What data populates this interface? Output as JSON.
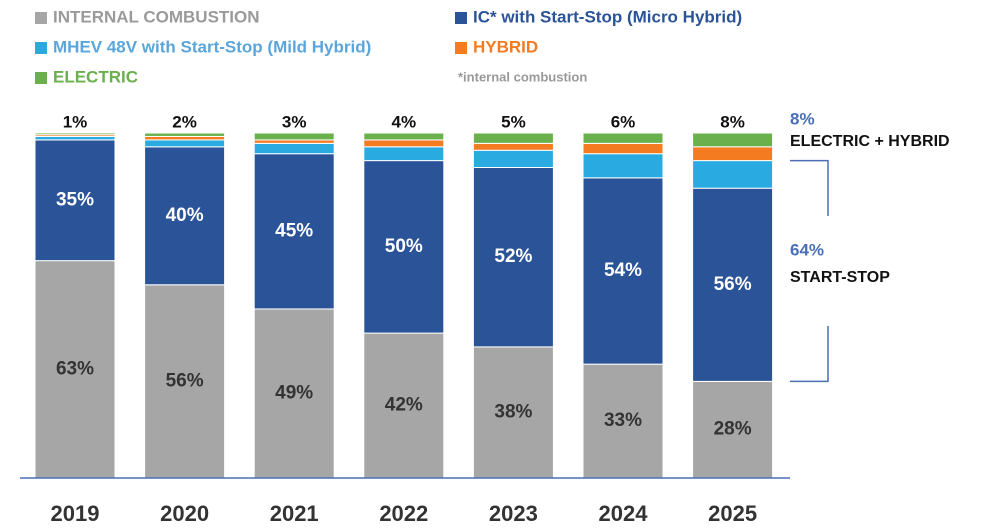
{
  "chart_data": {
    "type": "stacked-bar",
    "categories": [
      "2019",
      "2020",
      "2021",
      "2022",
      "2023",
      "2024",
      "2025"
    ],
    "ylim": [
      0,
      100
    ],
    "series": [
      {
        "name": "INTERNAL COMBUSTION",
        "color": "#a6a6a6",
        "text_color": "#9a9a9a",
        "label_color": "#333333",
        "values": [
          63,
          56,
          49,
          42,
          38,
          33,
          28
        ],
        "value_labels": [
          "63%",
          "56%",
          "49%",
          "42%",
          "38%",
          "33%",
          "28%"
        ]
      },
      {
        "name": "IC* with Start-Stop (Micro Hybrid)",
        "color": "#2b5397",
        "text_color": "#2b5397",
        "label_color": "#ffffff",
        "values": [
          35,
          40,
          45,
          50,
          52,
          54,
          56
        ],
        "value_labels": [
          "35%",
          "40%",
          "45%",
          "50%",
          "52%",
          "54%",
          "56%"
        ]
      },
      {
        "name": "MHEV 48V with Start-Stop (Mild Hybrid)",
        "color": "#29abe2",
        "text_color": "#5aa6dc",
        "values": [
          1,
          2,
          3,
          4,
          5,
          7,
          8
        ]
      },
      {
        "name": "HYBRID",
        "color": "#f47b20",
        "text_color": "#f47b20",
        "values": [
          0.5,
          1,
          1,
          2,
          2,
          3,
          4
        ]
      },
      {
        "name": "ELECTRIC",
        "color": "#6ab04c",
        "text_color": "#6ab04c",
        "values": [
          0.5,
          1,
          2,
          2,
          3,
          3,
          4
        ]
      }
    ],
    "top_labels": {
      "values": [
        1,
        2,
        3,
        4,
        5,
        6,
        8
      ],
      "value_labels": [
        "1%",
        "2%",
        "3%",
        "4%",
        "5%",
        "6%",
        "8%"
      ]
    },
    "footnote": "*internal combustion",
    "annotations": [
      {
        "label": "8%",
        "text": "ELECTRIC + HYBRID"
      },
      {
        "label": "64%",
        "value": 64,
        "text": "START-STOP"
      }
    ],
    "annotation_color": "#4a6fb5"
  }
}
